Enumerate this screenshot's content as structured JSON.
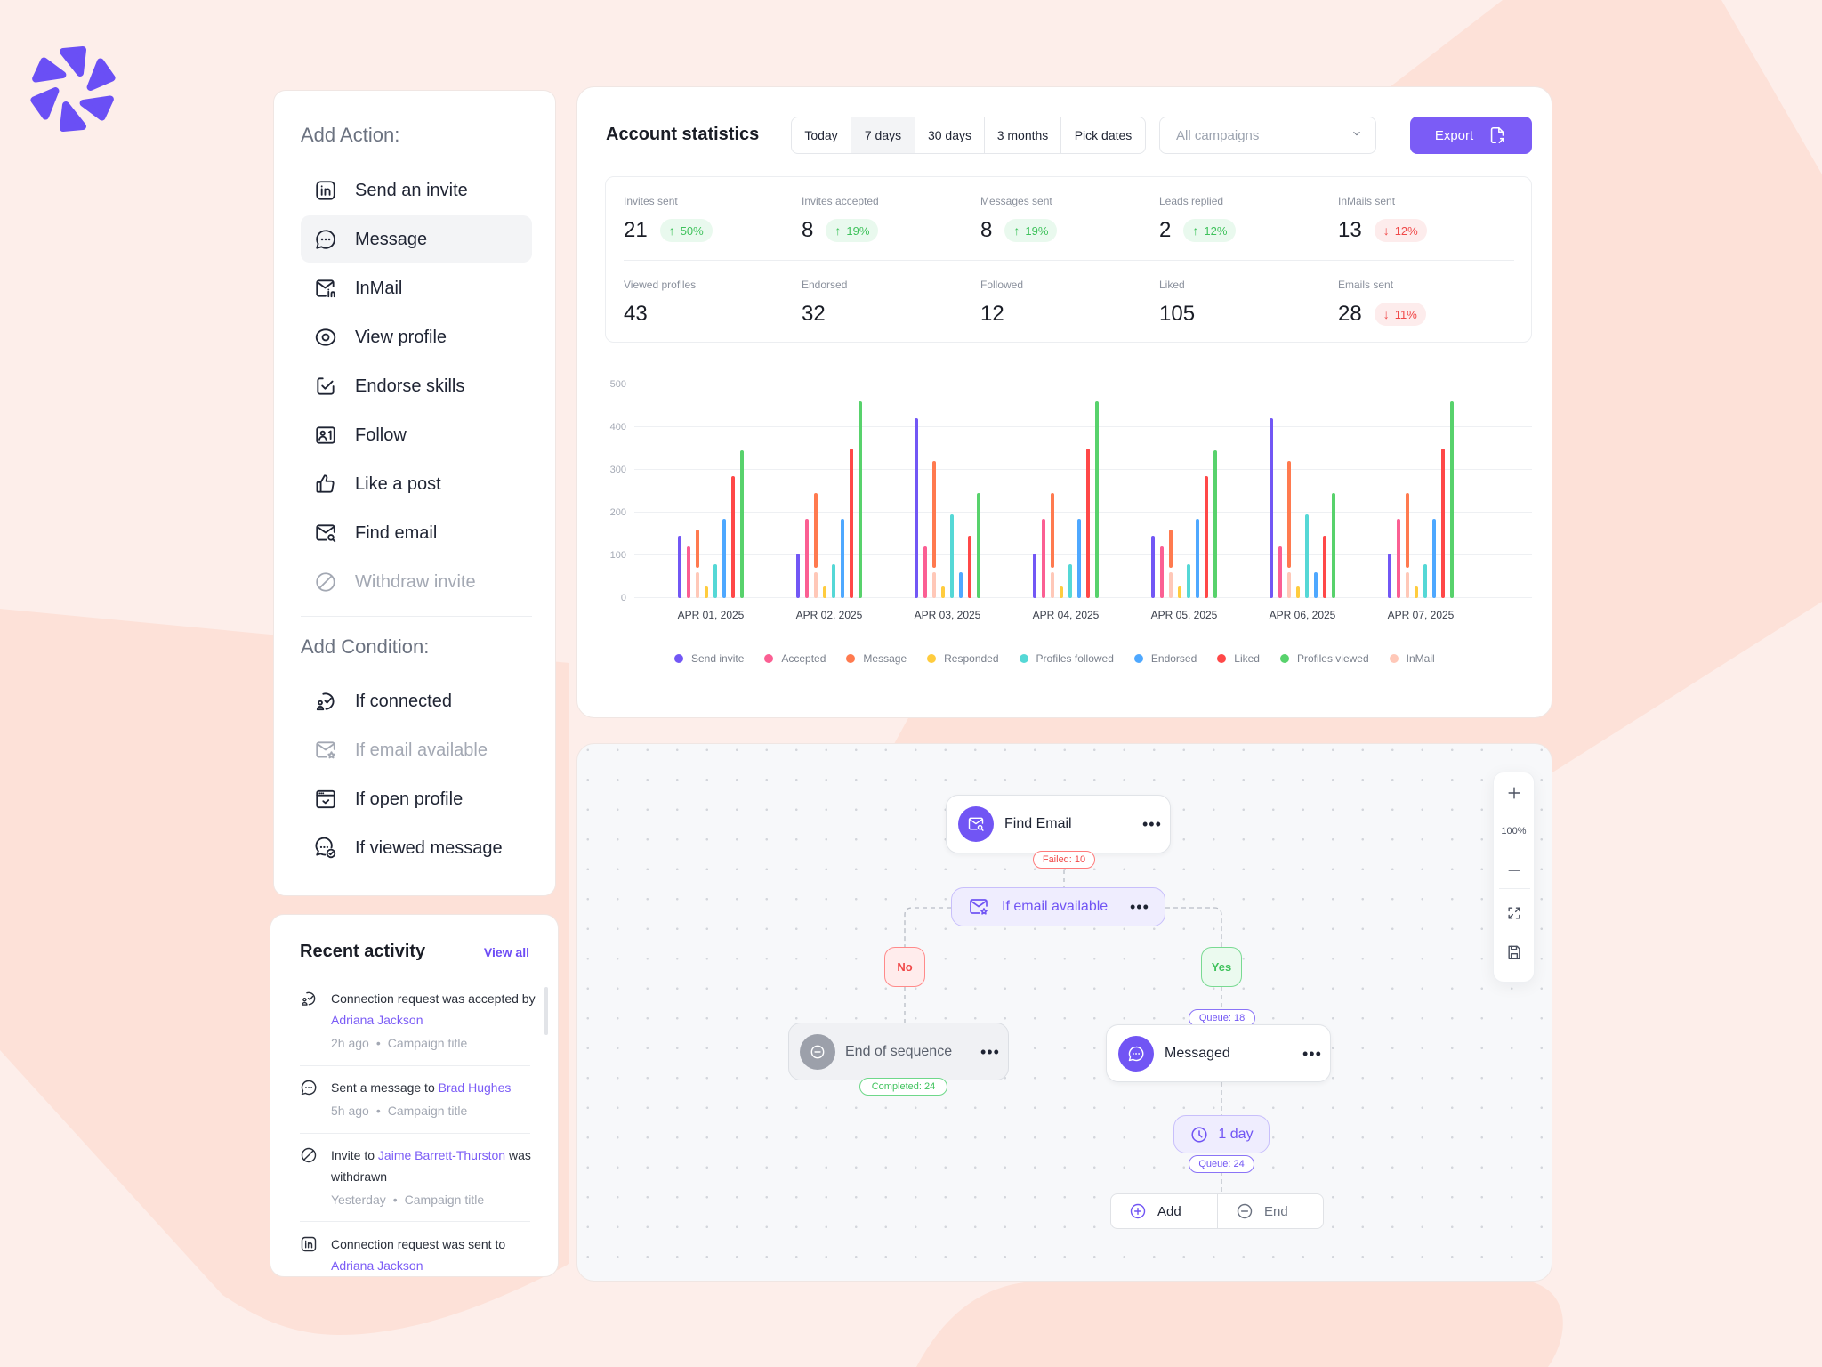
{
  "actions_panel": {
    "title": "Add Action:",
    "items": [
      {
        "label": "Send an invite",
        "icon": "linkedin-icon"
      },
      {
        "label": "Message",
        "icon": "message-icon",
        "state": "active"
      },
      {
        "label": "InMail",
        "icon": "inmail-icon"
      },
      {
        "label": "View profile",
        "icon": "eye-icon"
      },
      {
        "label": "Endorse skills",
        "icon": "endorse-icon"
      },
      {
        "label": "Follow",
        "icon": "follow-icon"
      },
      {
        "label": "Like a post",
        "icon": "thumbs-up-icon"
      },
      {
        "label": "Find email",
        "icon": "find-email-icon"
      },
      {
        "label": "Withdraw invite",
        "icon": "withdraw-icon",
        "state": "disabled"
      }
    ],
    "conditions_title": "Add Condition:",
    "conditions": [
      {
        "label": "If connected",
        "icon": "connected-icon"
      },
      {
        "label": "If email available",
        "icon": "email-available-icon",
        "state": "disabled"
      },
      {
        "label": "If open profile",
        "icon": "open-profile-icon"
      },
      {
        "label": "If viewed message",
        "icon": "viewed-message-icon"
      }
    ]
  },
  "recent_activity": {
    "title": "Recent activity",
    "view_all": "View all",
    "items": [
      {
        "icon": "connected-icon",
        "text_before": "Connection request was accepted by ",
        "link": "Adriana Jackson",
        "text_after": "",
        "time": "2h ago",
        "campaign": "Campaign title"
      },
      {
        "icon": "message-icon",
        "text_before": "Sent a message to ",
        "link": "Brad Hughes",
        "text_after": "",
        "time": "5h ago",
        "campaign": "Campaign title"
      },
      {
        "icon": "withdraw-icon",
        "text_before": "Invite to ",
        "link": "Jaime Barrett-Thurston",
        "text_after": " was withdrawn",
        "time": "Yesterday",
        "campaign": "Campaign title"
      },
      {
        "icon": "linkedin-icon",
        "text_before": "Connection request was sent to ",
        "link": "Adriana Jackson",
        "text_after": ""
      }
    ]
  },
  "stats": {
    "title": "Account statistics",
    "ranges": [
      {
        "label": "Today",
        "selected": false
      },
      {
        "label": "7 days",
        "selected": true
      },
      {
        "label": "30 days",
        "selected": false
      },
      {
        "label": "3 months",
        "selected": false
      },
      {
        "label": "Pick dates",
        "selected": false
      }
    ],
    "campaign_select": {
      "placeholder": "All campaigns"
    },
    "export_label": "Export",
    "metrics": [
      {
        "label": "Invites sent",
        "value": "21",
        "change": "50%",
        "direction": "up"
      },
      {
        "label": "Invites accepted",
        "value": "8",
        "change": "19%",
        "direction": "up"
      },
      {
        "label": "Messages sent",
        "value": "8",
        "change": "19%",
        "direction": "up"
      },
      {
        "label": "Leads replied",
        "value": "2",
        "change": "12%",
        "direction": "up"
      },
      {
        "label": "InMails sent",
        "value": "13",
        "change": "12%",
        "direction": "down"
      },
      {
        "label": "Viewed profiles",
        "value": "43",
        "change": "",
        "direction": ""
      },
      {
        "label": "Endorsed",
        "value": "32",
        "change": "",
        "direction": ""
      },
      {
        "label": "Followed",
        "value": "12",
        "change": "",
        "direction": ""
      },
      {
        "label": "Liked",
        "value": "105",
        "change": "",
        "direction": ""
      },
      {
        "label": "Emails sent",
        "value": "28",
        "change": "11%",
        "direction": "down"
      }
    ]
  },
  "chart_data": {
    "type": "bar",
    "title": "",
    "xlabel": "",
    "ylabel": "",
    "categories": [
      "APR 01, 2025",
      "APR 02, 2025",
      "APR 03, 2025",
      "APR 04, 2025",
      "APR 05, 2025",
      "APR 06, 2025",
      "APR 07, 2025"
    ],
    "y_ticks": [
      0,
      100,
      200,
      300,
      400,
      500
    ],
    "ylim": [
      0,
      500
    ],
    "grid": true,
    "legend_position": "bottom",
    "series": [
      {
        "name": "Send invite",
        "color": "#7257f5",
        "slot": 0,
        "values": [
          145,
          105,
          420,
          105,
          145,
          420,
          105
        ]
      },
      {
        "name": "Accepted",
        "color": "#fb5f93",
        "slot": 1,
        "values": [
          120,
          185,
          120,
          185,
          120,
          120,
          185
        ]
      },
      {
        "name": "Message",
        "color": "#ff7a4f",
        "slot": 2,
        "stacked_on": "InMail",
        "stack_gap": 10,
        "values": [
          160,
          245,
          320,
          245,
          160,
          320,
          245
        ]
      },
      {
        "name": "Responded",
        "color": "#ffcc3e",
        "slot": 3,
        "values": [
          28,
          28,
          28,
          28,
          28,
          28,
          28
        ]
      },
      {
        "name": "Profiles followed",
        "color": "#55d8d6",
        "slot": 4,
        "values": [
          80,
          80,
          195,
          80,
          80,
          195,
          80
        ]
      },
      {
        "name": "Endorsed",
        "color": "#4ea8ff",
        "slot": 5,
        "values": [
          185,
          185,
          60,
          185,
          185,
          60,
          185
        ]
      },
      {
        "name": "Liked",
        "color": "#ff4848",
        "slot": 6,
        "values": [
          285,
          350,
          145,
          350,
          285,
          145,
          350
        ]
      },
      {
        "name": "Profiles viewed",
        "color": "#58d26c",
        "slot": 7,
        "values": [
          345,
          460,
          245,
          460,
          345,
          245,
          460
        ]
      },
      {
        "name": "InMail",
        "color": "#ffc8b8",
        "slot": 2,
        "values": [
          60,
          60,
          60,
          60,
          60,
          60,
          60
        ]
      }
    ]
  },
  "flow": {
    "find_email": {
      "label": "Find Email",
      "badge": "Failed: 10"
    },
    "if_email": {
      "label": "If email available"
    },
    "no_branch": {
      "label": "No"
    },
    "yes_branch": {
      "label": "Yes"
    },
    "end_sequence": {
      "label": "End of sequence",
      "badge": "Completed: 24"
    },
    "messaged": {
      "label": "Messaged",
      "queue_badge": "Queue: 18"
    },
    "delay": {
      "label": "1 day",
      "badge": "Queue: 24"
    },
    "add_label": "Add",
    "end_label": "End",
    "more_label": "•••"
  },
  "zoom_controls": {
    "zoom_level": "100%"
  },
  "colors": {
    "brand": "#6b4ff6",
    "accent": "#7b5cf6",
    "positive": "#3fc25c",
    "negative": "#f04848"
  }
}
